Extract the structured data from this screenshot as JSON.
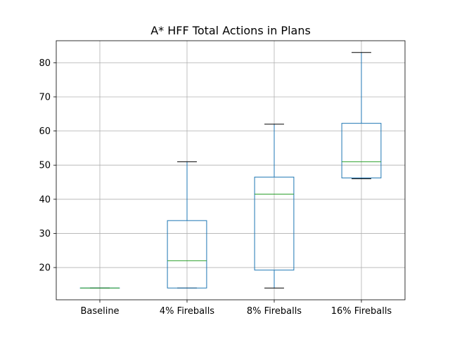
{
  "chart_data": {
    "type": "box",
    "title": "A* HFF Total Actions in Plans",
    "xlabel": "",
    "ylabel": "",
    "categories": [
      "Baseline",
      "4% Fireballs",
      "8% Fireballs",
      "16% Fireballs"
    ],
    "boxes": [
      {
        "label": "Baseline",
        "whislo": 14,
        "q1": 14,
        "median": 14,
        "q3": 14,
        "whishi": 14
      },
      {
        "label": "4% Fireballs",
        "whislo": 14,
        "q1": 14,
        "median": 22,
        "q3": 33.75,
        "whishi": 51
      },
      {
        "label": "8% Fireballs",
        "whislo": 14,
        "q1": 19.25,
        "median": 41.5,
        "q3": 46.5,
        "whishi": 62
      },
      {
        "label": "16% Fireballs",
        "whislo": 46,
        "q1": 46.25,
        "median": 51,
        "q3": 62.25,
        "whishi": 83
      }
    ],
    "yticks": [
      20,
      30,
      40,
      50,
      60,
      70,
      80
    ],
    "ylim": [
      10.55,
      86.45
    ],
    "grid": true,
    "colors": {
      "box": "#1f77b4",
      "median": "#2ca02c",
      "whisker": "#1f77b4",
      "cap": "#000000",
      "grid": "#b0b0b0",
      "axes": "#000000"
    }
  }
}
